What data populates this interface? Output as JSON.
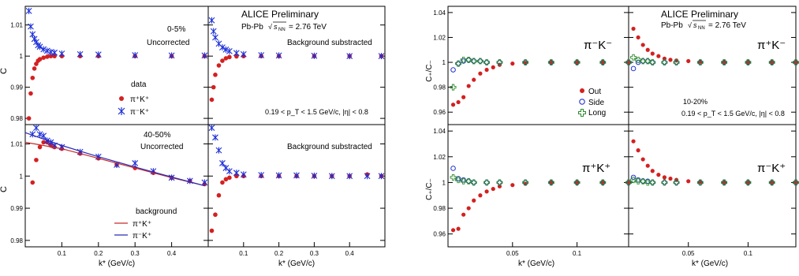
{
  "figure_left": {
    "prelim_label": "ALICE Preliminary",
    "system_label": "Pb-Pb",
    "energy_label": "= 2.76 TeV",
    "xlabel": "k* (GeV/c)",
    "ylabel": "C",
    "top_left_centrality": "0-5%",
    "top_left_status": "Uncorrected",
    "top_right_status": "Background substracted",
    "legend_data_title": "data",
    "legend_pipkp": "π⁺K⁺",
    "legend_pimkp": "π⁻K⁺",
    "cut_label": "0.19 < p_T < 1.5 GeV/c, |η| < 0.8",
    "bottom_left_centrality": "40-50%",
    "bottom_left_status": "Uncorrected",
    "bottom_right_status": "Background substracted",
    "legend_bg_title": "background",
    "legend_bg_pipkp": "π⁺K⁺",
    "legend_bg_pimkp": "π⁻K⁺",
    "yticks_top": [
      "0.98",
      "0.99",
      "1",
      "1.01"
    ],
    "yticks_bottom": [
      "0.98",
      "0.99",
      "1",
      "1.01"
    ],
    "xticks": [
      "0.1",
      "0.2",
      "0.3",
      "0.4"
    ]
  },
  "figure_right": {
    "prelim_label": "ALICE Preliminary",
    "system_label": "Pb-Pb",
    "energy_label": "= 2.76 TeV",
    "xlabel": "k* (GeV/c)",
    "ylabel": "C₊/C₋",
    "top_left_pair": "π⁻K⁻",
    "top_right_pair": "π⁺K⁻",
    "bottom_left_pair": "π⁺K⁺",
    "bottom_right_pair": "π⁻K⁺",
    "legend_out": "Out",
    "legend_side": "Side",
    "legend_long": "Long",
    "centrality": "10-20%",
    "cut_label": "0.19 < p_T < 1.5 GeV/c, |η| < 0.8",
    "yticks_top": [
      "0.96",
      "0.98",
      "1",
      "1.02",
      "1.04"
    ],
    "yticks_bottom": [
      "0.96",
      "0.98",
      "1",
      "1.02",
      "1.04"
    ],
    "xticks": [
      "0.05",
      "0.1"
    ]
  },
  "colors": {
    "red": "#d42020",
    "blue": "#1c2fd8",
    "blue_open": "#2233cc",
    "green": "#2e8b2e",
    "line_red": "#c82a2a",
    "line_blue": "#2a2ab8"
  },
  "chart_data": [
    {
      "type": "scatter",
      "panel": "0-5% uncorrected",
      "xlim": [
        0,
        0.5
      ],
      "ylim": [
        0.978,
        1.016
      ],
      "xlabel": "k* (GeV/c)",
      "ylabel": "C",
      "series": [
        {
          "name": "π⁺K⁺",
          "x": [
            0.01,
            0.015,
            0.02,
            0.025,
            0.03,
            0.035,
            0.04,
            0.05,
            0.06,
            0.07,
            0.08,
            0.1,
            0.15,
            0.2,
            0.3,
            0.4,
            0.49
          ],
          "y": [
            0.98,
            0.988,
            0.993,
            0.996,
            0.9975,
            0.9985,
            0.999,
            0.9995,
            0.9998,
            1.0,
            1.0,
            1.0,
            1.0,
            1.0,
            1.0,
            1.0,
            1.0
          ]
        },
        {
          "name": "π⁻K⁺",
          "x": [
            0.01,
            0.015,
            0.02,
            0.025,
            0.03,
            0.035,
            0.04,
            0.05,
            0.06,
            0.07,
            0.08,
            0.1,
            0.15,
            0.2,
            0.3,
            0.4,
            0.49
          ],
          "y": [
            1.0145,
            1.0095,
            1.007,
            1.0055,
            1.0045,
            1.0035,
            1.003,
            1.0022,
            1.0017,
            1.0013,
            1.0011,
            1.0008,
            1.0006,
            1.0005,
            1.0003,
            1.0002,
            1.0002
          ]
        }
      ]
    },
    {
      "type": "scatter",
      "panel": "0-5% background subtracted",
      "xlim": [
        0,
        0.5
      ],
      "ylim": [
        0.978,
        1.016
      ],
      "series": [
        {
          "name": "π⁺K⁺",
          "x": [
            0.01,
            0.015,
            0.02,
            0.03,
            0.04,
            0.05,
            0.06,
            0.08,
            0.1,
            0.15,
            0.2,
            0.3,
            0.4,
            0.49
          ],
          "y": [
            0.986,
            0.99,
            0.994,
            0.997,
            0.9985,
            0.9993,
            0.9997,
            0.9999,
            1.0,
            1.0,
            1.0,
            1.0,
            1.0,
            1.0
          ]
        },
        {
          "name": "π⁻K⁺",
          "x": [
            0.01,
            0.015,
            0.02,
            0.03,
            0.04,
            0.05,
            0.06,
            0.08,
            0.1,
            0.15,
            0.2,
            0.3,
            0.4,
            0.49
          ],
          "y": [
            1.0115,
            1.008,
            1.006,
            1.004,
            1.0028,
            1.0021,
            1.0016,
            1.001,
            1.0006,
            1.0003,
            1.0002,
            1.0001,
            1.0,
            1.0
          ]
        }
      ]
    },
    {
      "type": "scatter",
      "panel": "40-50% uncorrected",
      "xlim": [
        0,
        0.5
      ],
      "ylim": [
        0.978,
        1.016
      ],
      "series": [
        {
          "name": "π⁺K⁺",
          "x": [
            0.02,
            0.03,
            0.04,
            0.05,
            0.06,
            0.07,
            0.08,
            0.1,
            0.15,
            0.2,
            0.25,
            0.3,
            0.35,
            0.4,
            0.45,
            0.49
          ],
          "y": [
            0.998,
            1.005,
            1.009,
            1.0105,
            1.0105,
            1.0095,
            1.009,
            1.0085,
            1.007,
            1.0055,
            1.0035,
            1.0025,
            1.001,
            0.9995,
            0.9985,
            0.9975
          ]
        },
        {
          "name": "π⁻K⁺",
          "x": [
            0.02,
            0.03,
            0.04,
            0.05,
            0.06,
            0.07,
            0.08,
            0.1,
            0.15,
            0.2,
            0.25,
            0.3,
            0.35,
            0.4,
            0.45,
            0.49
          ],
          "y": [
            1.013,
            1.015,
            1.013,
            1.0125,
            1.011,
            1.0105,
            1.0095,
            1.009,
            1.0075,
            1.006,
            1.0035,
            1.004,
            1.0015,
            0.9995,
            0.9985,
            0.998
          ]
        },
        {
          "name": "background π⁺K⁺",
          "x": [
            0.0,
            0.1,
            0.2,
            0.3,
            0.4,
            0.49
          ],
          "y": [
            1.0105,
            1.0085,
            1.0055,
            1.0025,
            0.9995,
            0.997
          ]
        },
        {
          "name": "background π⁻K⁺",
          "x": [
            0.0,
            0.1,
            0.2,
            0.3,
            0.4,
            0.49
          ],
          "y": [
            1.0135,
            1.0095,
            1.006,
            1.0028,
            0.9997,
            0.997
          ]
        }
      ]
    },
    {
      "type": "scatter",
      "panel": "40-50% background subtracted",
      "xlim": [
        0,
        0.5
      ],
      "ylim": [
        0.978,
        1.016
      ],
      "series": [
        {
          "name": "π⁺K⁺",
          "x": [
            0.01,
            0.02,
            0.03,
            0.04,
            0.05,
            0.06,
            0.08,
            0.1,
            0.15,
            0.2,
            0.25,
            0.3,
            0.35,
            0.4,
            0.45,
            0.49
          ],
          "y": [
            0.983,
            0.988,
            0.994,
            0.998,
            0.999,
            0.9995,
            1.0,
            1.0,
            1.0,
            1.0,
            1.0,
            1.0,
            1.0,
            1.0,
            1.0005,
            1.0
          ]
        },
        {
          "name": "π⁻K⁺",
          "x": [
            0.01,
            0.02,
            0.03,
            0.04,
            0.05,
            0.06,
            0.08,
            0.1,
            0.15,
            0.2,
            0.25,
            0.3,
            0.35,
            0.4,
            0.45,
            0.49
          ],
          "y": [
            1.015,
            1.012,
            1.008,
            1.004,
            1.0025,
            1.0015,
            1.001,
            1.0005,
            1.0003,
            1.0002,
            1.0002,
            1.0001,
            1.0,
            1.0,
            1.0,
            1.0
          ]
        }
      ]
    },
    {
      "type": "scatter",
      "panel": "π⁻K⁻",
      "xlim": [
        0,
        0.14
      ],
      "ylim": [
        0.95,
        1.045
      ],
      "xlabel": "k* (GeV/c)",
      "ylabel": "C₊/C₋",
      "series": [
        {
          "name": "Out",
          "x": [
            0.004,
            0.008,
            0.012,
            0.016,
            0.02,
            0.025,
            0.03,
            0.035,
            0.04,
            0.05,
            0.06,
            0.08,
            0.1,
            0.12,
            0.14
          ],
          "y": [
            0.966,
            0.968,
            0.972,
            0.981,
            0.986,
            0.991,
            0.994,
            0.996,
            0.998,
            0.999,
            0.9995,
            1.0,
            1.0,
            1.0,
            1.0
          ]
        },
        {
          "name": "Side",
          "x": [
            0.004,
            0.008,
            0.012,
            0.016,
            0.02,
            0.025,
            0.03,
            0.04,
            0.06,
            0.08,
            0.1,
            0.12,
            0.14
          ],
          "y": [
            0.994,
            0.999,
            1.001,
            1.002,
            1.001,
            1.001,
            1.0,
            1.0,
            1.0,
            1.0,
            1.0,
            1.0,
            1.0
          ]
        },
        {
          "name": "Long",
          "x": [
            0.004,
            0.008,
            0.012,
            0.016,
            0.02,
            0.025,
            0.03,
            0.04,
            0.06,
            0.08,
            0.1,
            0.12,
            0.14
          ],
          "y": [
            0.98,
            0.999,
            1.002,
            1.002,
            1.001,
            1.001,
            1.0,
            1.0,
            1.0,
            1.0,
            1.0,
            1.0,
            1.0
          ]
        }
      ]
    },
    {
      "type": "scatter",
      "panel": "π⁺K⁻",
      "xlim": [
        0,
        0.14
      ],
      "ylim": [
        0.95,
        1.045
      ],
      "series": [
        {
          "name": "Out",
          "x": [
            0.004,
            0.008,
            0.012,
            0.016,
            0.02,
            0.025,
            0.03,
            0.035,
            0.04,
            0.05,
            0.06,
            0.08,
            0.1,
            0.12,
            0.14
          ],
          "y": [
            1.027,
            1.02,
            1.014,
            1.01,
            1.007,
            1.005,
            1.003,
            1.002,
            1.0015,
            1.001,
            1.0005,
            1.0,
            1.0,
            1.0,
            1.0
          ]
        },
        {
          "name": "Side",
          "x": [
            0.004,
            0.008,
            0.012,
            0.016,
            0.02,
            0.03,
            0.04,
            0.06,
            0.08,
            0.1,
            0.12,
            0.14
          ],
          "y": [
            0.995,
            1.0,
            1.001,
            1.001,
            1.0,
            1.0,
            1.0,
            1.0,
            1.0,
            1.0,
            1.0,
            1.0
          ]
        },
        {
          "name": "Long",
          "x": [
            0.004,
            0.008,
            0.012,
            0.016,
            0.02,
            0.03,
            0.04,
            0.06,
            0.08,
            0.1,
            0.12,
            0.14
          ],
          "y": [
            1.004,
            1.002,
            1.001,
            1.001,
            1.0,
            1.0,
            1.0,
            1.0,
            1.0,
            1.0,
            1.0,
            1.0
          ]
        }
      ]
    },
    {
      "type": "scatter",
      "panel": "π⁺K⁺",
      "xlim": [
        0,
        0.14
      ],
      "ylim": [
        0.95,
        1.045
      ],
      "series": [
        {
          "name": "Out",
          "x": [
            0.004,
            0.008,
            0.012,
            0.016,
            0.02,
            0.025,
            0.03,
            0.035,
            0.04,
            0.05,
            0.06,
            0.08,
            0.1,
            0.12,
            0.14
          ],
          "y": [
            0.963,
            0.964,
            0.975,
            0.98,
            0.986,
            0.99,
            0.993,
            0.995,
            0.997,
            0.998,
            0.999,
            1.0,
            1.0,
            1.0,
            1.0
          ]
        },
        {
          "name": "Side",
          "x": [
            0.004,
            0.008,
            0.012,
            0.016,
            0.02,
            0.03,
            0.04,
            0.06,
            0.08,
            0.1,
            0.12,
            0.14
          ],
          "y": [
            1.011,
            1.003,
            1.002,
            1.001,
            1.0,
            1.0,
            1.0,
            1.0,
            1.0,
            1.0,
            1.0,
            1.0
          ]
        },
        {
          "name": "Long",
          "x": [
            0.004,
            0.008,
            0.012,
            0.016,
            0.02,
            0.03,
            0.04,
            0.06,
            0.08,
            0.1,
            0.12,
            0.14
          ],
          "y": [
            1.004,
            1.002,
            1.001,
            1.001,
            1.0,
            1.0,
            1.0,
            1.0,
            1.0,
            1.0,
            1.0,
            1.0
          ]
        }
      ]
    },
    {
      "type": "scatter",
      "panel": "π⁻K⁺",
      "xlim": [
        0,
        0.14
      ],
      "ylim": [
        0.95,
        1.045
      ],
      "series": [
        {
          "name": "Out",
          "x": [
            0.004,
            0.008,
            0.012,
            0.016,
            0.02,
            0.025,
            0.03,
            0.035,
            0.04,
            0.05,
            0.06,
            0.08,
            0.1,
            0.12,
            0.14
          ],
          "y": [
            1.032,
            1.025,
            1.018,
            1.013,
            1.009,
            1.006,
            1.004,
            1.003,
            1.002,
            1.001,
            1.0005,
            1.0,
            1.0,
            1.0,
            1.0
          ]
        },
        {
          "name": "Side",
          "x": [
            0.004,
            0.008,
            0.012,
            0.016,
            0.02,
            0.03,
            0.04,
            0.06,
            0.08,
            0.1,
            0.12,
            0.14
          ],
          "y": [
            1.004,
            1.002,
            1.001,
            1.001,
            1.0,
            1.0,
            1.0,
            1.0,
            1.0,
            1.0,
            1.0,
            1.0
          ]
        },
        {
          "name": "Long",
          "x": [
            0.004,
            0.008,
            0.012,
            0.016,
            0.02,
            0.03,
            0.04,
            0.06,
            0.08,
            0.1,
            0.12,
            0.14
          ],
          "y": [
            1.002,
            1.001,
            1.001,
            1.0,
            1.0,
            1.0,
            1.0,
            1.0,
            1.0,
            1.0,
            1.0,
            1.0
          ]
        }
      ]
    }
  ]
}
